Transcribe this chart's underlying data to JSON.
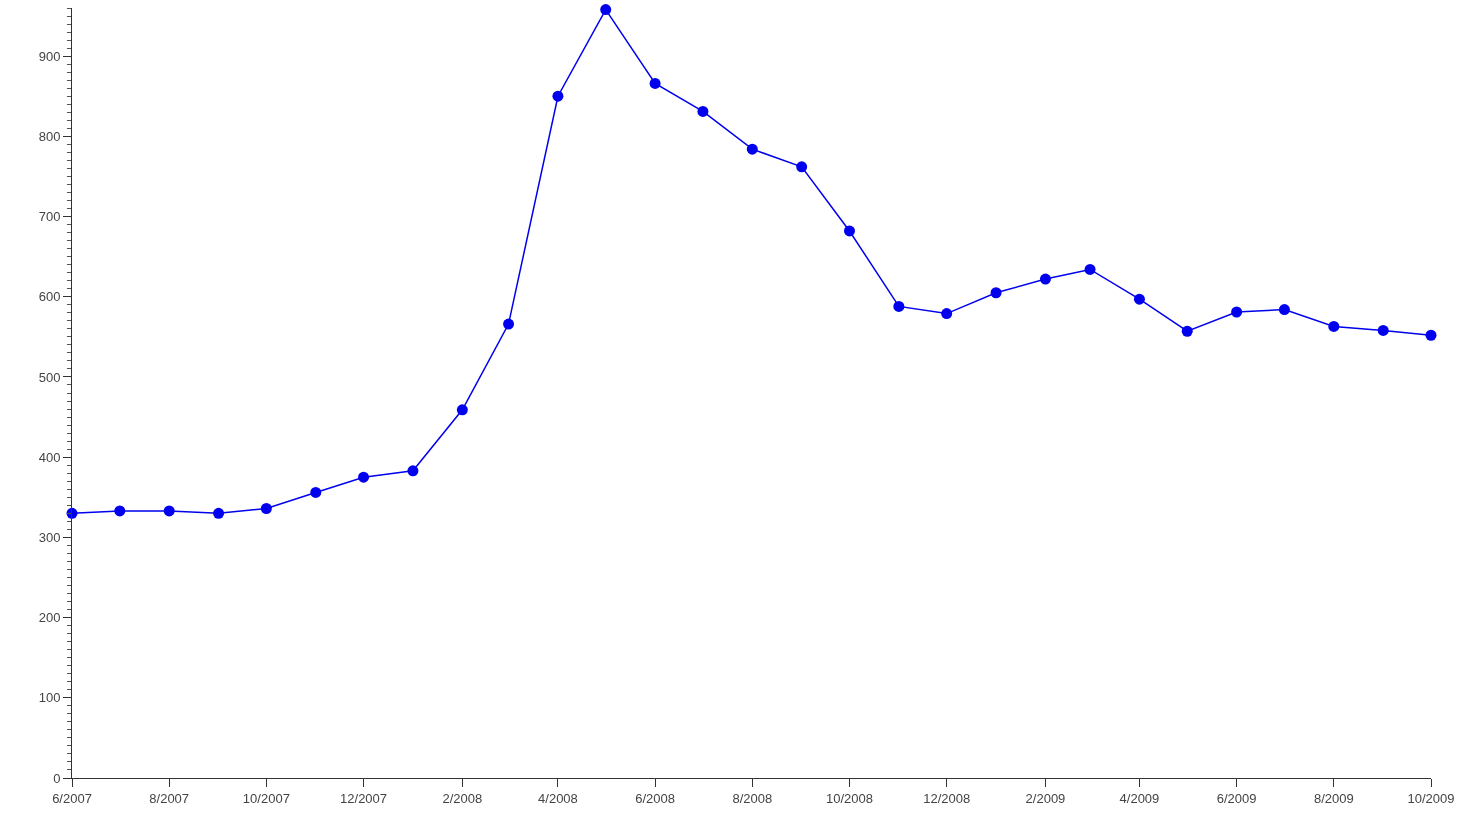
{
  "chart_data": {
    "type": "line",
    "x": [
      "2007-06",
      "2007-07",
      "2007-08",
      "2007-09",
      "2007-10",
      "2007-11",
      "2007-12",
      "2008-01",
      "2008-02",
      "2008-03",
      "2008-04",
      "2008-05",
      "2008-06",
      "2008-07",
      "2008-08",
      "2008-09",
      "2008-10",
      "2008-11",
      "2008-12",
      "2009-01",
      "2009-02",
      "2009-03",
      "2009-04",
      "2009-05",
      "2009-06",
      "2009-07",
      "2009-08",
      "2009-09",
      "2009-10"
    ],
    "series": [
      {
        "color": "#0000ee",
        "values": [
          330,
          333,
          333,
          330,
          336,
          356,
          375,
          383,
          459,
          566,
          850,
          958,
          866,
          831,
          784,
          762,
          682,
          588,
          579,
          605,
          622,
          634,
          597,
          557,
          581,
          584,
          563,
          558,
          552
        ]
      }
    ],
    "xlim": [
      "2007-06",
      "2009-10"
    ],
    "xticks": [
      {
        "value": "2007-06",
        "label": "6/2007"
      },
      {
        "value": "2007-08",
        "label": "8/2007"
      },
      {
        "value": "2007-10",
        "label": "10/2007"
      },
      {
        "value": "2007-12",
        "label": "12/2007"
      },
      {
        "value": "2008-02",
        "label": "2/2008"
      },
      {
        "value": "2008-04",
        "label": "4/2008"
      },
      {
        "value": "2008-06",
        "label": "6/2008"
      },
      {
        "value": "2008-08",
        "label": "8/2008"
      },
      {
        "value": "2008-10",
        "label": "10/2008"
      },
      {
        "value": "2008-12",
        "label": "12/2008"
      },
      {
        "value": "2009-02",
        "label": "2/2009"
      },
      {
        "value": "2009-04",
        "label": "4/2009"
      },
      {
        "value": "2009-06",
        "label": "6/2009"
      },
      {
        "value": "2009-08",
        "label": "8/2009"
      },
      {
        "value": "2009-10",
        "label": "10/2009"
      }
    ],
    "ylim": [
      0,
      960
    ],
    "yticks": [
      0,
      100,
      200,
      300,
      400,
      500,
      600,
      700,
      800,
      900
    ],
    "marker": "circle",
    "line_style": "solid",
    "legend": false
  }
}
